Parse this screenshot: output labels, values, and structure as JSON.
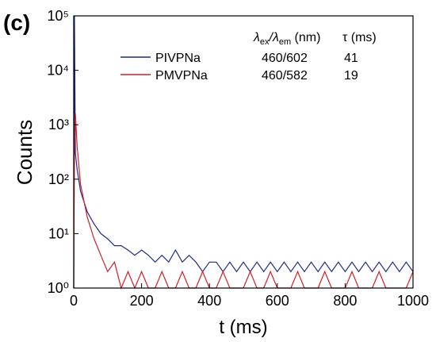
{
  "chart_data": {
    "type": "line",
    "panel_label": "(c)",
    "x_label": "t (ms)",
    "y_label": "Counts",
    "log_y": true,
    "xlim": [
      0,
      1000
    ],
    "xticks": [
      0,
      200,
      400,
      600,
      800,
      1000
    ],
    "ylim": [
      1,
      100000
    ],
    "yticks": [
      {
        "value": 1,
        "label": "10⁰"
      },
      {
        "value": 10,
        "label": "10¹"
      },
      {
        "value": 100,
        "label": "10²"
      },
      {
        "value": 1000,
        "label": "10³"
      },
      {
        "value": 10000,
        "label": "10⁴"
      },
      {
        "value": 100000,
        "label": "10⁵"
      }
    ],
    "legend_header": {
      "wavelength": [
        "λ",
        "ex",
        "/λ",
        "em",
        " (nm)"
      ],
      "lifetime": "τ (ms)"
    },
    "x": [
      0,
      2,
      5,
      10,
      20,
      40,
      60,
      80,
      100,
      120,
      140,
      160,
      180,
      200,
      220,
      240,
      260,
      280,
      300,
      320,
      340,
      360,
      380,
      400,
      420,
      440,
      460,
      480,
      500,
      520,
      540,
      560,
      580,
      600,
      620,
      640,
      660,
      680,
      700,
      720,
      740,
      760,
      780,
      800,
      820,
      840,
      860,
      880,
      900,
      920,
      940,
      960,
      980,
      1000
    ],
    "series": [
      {
        "name": "PIVPNa",
        "color": "#1f2a8c",
        "wavelengths": "460/602",
        "lifetime": "41",
        "values": [
          1,
          100000,
          300,
          150,
          60,
          25,
          15,
          10,
          8,
          6,
          6,
          5,
          4,
          5,
          4,
          3,
          4,
          3,
          5,
          3,
          4,
          3,
          2,
          3,
          3,
          2,
          3,
          2,
          3,
          2,
          3,
          2,
          3,
          2,
          3,
          2,
          3,
          2,
          3,
          2,
          3,
          2,
          3,
          2,
          3,
          2,
          3,
          2,
          3,
          2,
          3,
          2,
          3,
          2
        ]
      },
      {
        "name": "PMVPNa",
        "color": "#d01f26",
        "wavelengths": "460/582",
        "lifetime": "19",
        "values": [
          1,
          300,
          1600,
          400,
          80,
          20,
          8,
          4,
          2,
          3,
          1,
          2,
          1,
          2,
          1,
          1,
          2,
          1,
          1,
          2,
          1,
          1,
          2,
          1,
          1,
          2,
          1,
          1,
          1,
          2,
          1,
          1,
          2,
          1,
          1,
          1,
          2,
          1,
          1,
          1,
          2,
          1,
          1,
          1,
          2,
          1,
          1,
          1,
          2,
          1,
          1,
          1,
          1,
          2
        ]
      }
    ]
  }
}
